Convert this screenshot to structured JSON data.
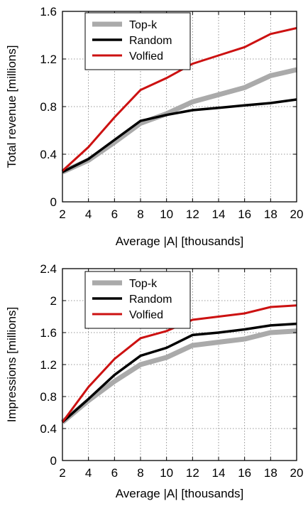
{
  "chart_data": [
    {
      "type": "line",
      "xlabel": "Average |A| [thousands]",
      "ylabel": "Total revenue [millions]",
      "x": [
        2,
        4,
        6,
        8,
        10,
        12,
        14,
        16,
        18,
        20
      ],
      "xlim": [
        2,
        20
      ],
      "ylim": [
        0,
        1.6
      ],
      "xticks": [
        "2",
        "4",
        "6",
        "8",
        "10",
        "12",
        "14",
        "16",
        "18",
        "20"
      ],
      "yticks": [
        "0",
        "0.4",
        "0.8",
        "1.2",
        "1.6"
      ],
      "grid": true,
      "legend_position": "top-left",
      "series": [
        {
          "name": "Top-k",
          "color": "#aaaaaa",
          "values": [
            0.25,
            0.35,
            0.5,
            0.66,
            0.74,
            0.84,
            0.9,
            0.96,
            1.06,
            1.11
          ]
        },
        {
          "name": "Random",
          "color": "#000000",
          "values": [
            0.25,
            0.36,
            0.52,
            0.68,
            0.73,
            0.77,
            0.79,
            0.81,
            0.83,
            0.86
          ]
        },
        {
          "name": "Volfied",
          "color": "#cc1111",
          "values": [
            0.26,
            0.46,
            0.71,
            0.94,
            1.04,
            1.16,
            1.23,
            1.3,
            1.41,
            1.46
          ]
        }
      ]
    },
    {
      "type": "line",
      "xlabel": "Average |A| [thousands]",
      "ylabel": "Impressions [millions]",
      "x": [
        2,
        4,
        6,
        8,
        10,
        12,
        14,
        16,
        18,
        20
      ],
      "xlim": [
        2,
        20
      ],
      "ylim": [
        0,
        2.4
      ],
      "xticks": [
        "2",
        "4",
        "6",
        "8",
        "10",
        "12",
        "14",
        "16",
        "18",
        "20"
      ],
      "yticks": [
        "0",
        "0.4",
        "0.8",
        "1.2",
        "1.6",
        "2",
        "2.4"
      ],
      "grid": true,
      "legend_position": "top-left",
      "series": [
        {
          "name": "Top-k",
          "color": "#aaaaaa",
          "values": [
            0.48,
            0.75,
            0.99,
            1.2,
            1.29,
            1.44,
            1.48,
            1.52,
            1.6,
            1.62
          ]
        },
        {
          "name": "Random",
          "color": "#000000",
          "values": [
            0.48,
            0.77,
            1.07,
            1.31,
            1.41,
            1.57,
            1.6,
            1.64,
            1.69,
            1.71
          ]
        },
        {
          "name": "Volfied",
          "color": "#cc1111",
          "values": [
            0.48,
            0.92,
            1.27,
            1.53,
            1.62,
            1.76,
            1.8,
            1.84,
            1.92,
            1.94
          ]
        }
      ]
    }
  ]
}
